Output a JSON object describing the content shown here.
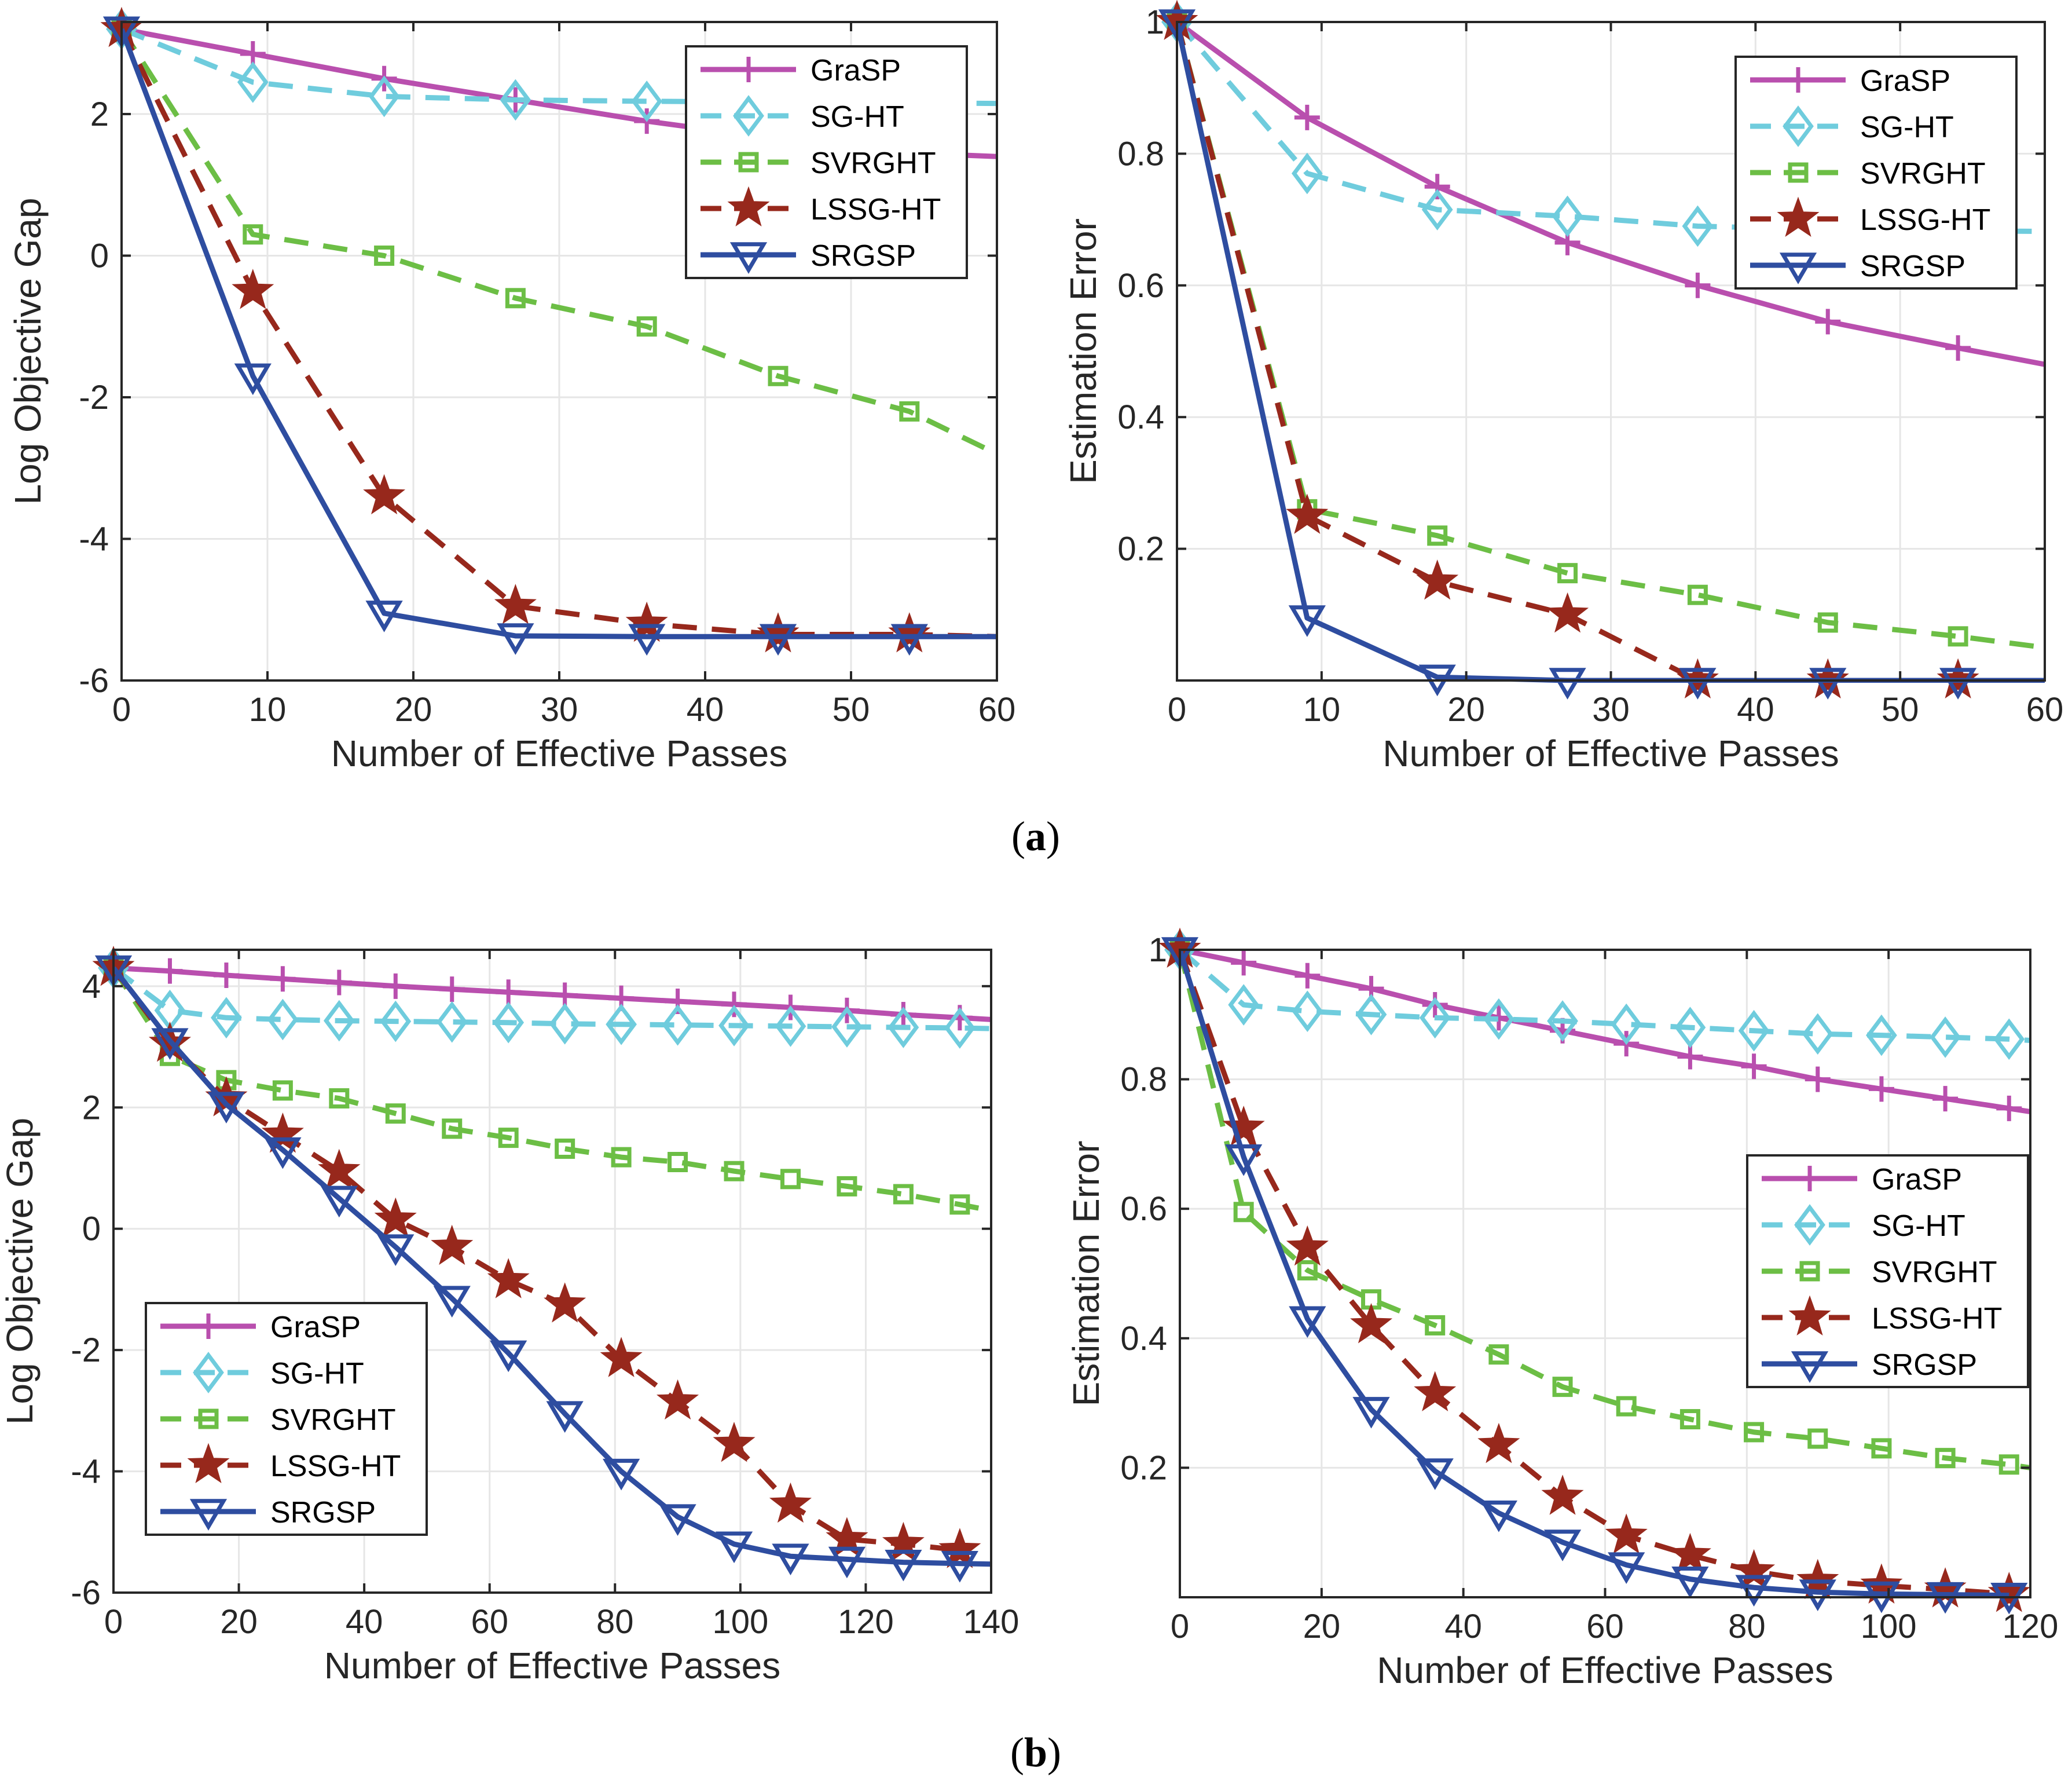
{
  "styles": {
    "GraSP": {
      "color": "#B94FAE",
      "dash": "solid",
      "marker": "plus"
    },
    "SG-HT": {
      "color": "#6FCCDD",
      "dash": "dashed",
      "marker": "diamond"
    },
    "SVRGHT": {
      "color": "#6CBE45",
      "dash": "dashed",
      "marker": "square"
    },
    "LSSG-HT": {
      "color": "#97281C",
      "dash": "dashed",
      "marker": "star"
    },
    "SRGSP": {
      "color": "#2E4DA0",
      "dash": "solid",
      "marker": "triangle-down"
    }
  },
  "subfigure_labels": {
    "a": "a",
    "b": "b"
  },
  "chart_data": [
    {
      "type": "line",
      "group": "a",
      "xlabel": "Number of Effective Passes",
      "ylabel": "Log Objective Gap",
      "xlim": [
        0,
        60
      ],
      "ylim": [
        -6,
        3.3
      ],
      "xticks": [
        0,
        10,
        20,
        30,
        40,
        50,
        60
      ],
      "yticks": [
        -6,
        -4,
        -2,
        0,
        2
      ],
      "grid": true,
      "legend_position": "top-right",
      "series": [
        {
          "name": "GraSP",
          "x": [
            0,
            9,
            18,
            27,
            36,
            45,
            54,
            60
          ],
          "y": [
            3.2,
            2.85,
            2.5,
            2.2,
            1.9,
            1.65,
            1.45,
            1.4
          ]
        },
        {
          "name": "SG-HT",
          "x": [
            0,
            9,
            18,
            27,
            36,
            45,
            54,
            60
          ],
          "y": [
            3.2,
            2.45,
            2.25,
            2.2,
            2.18,
            2.17,
            2.16,
            2.15
          ]
        },
        {
          "name": "SVRGHT",
          "x": [
            0,
            9,
            18,
            27,
            36,
            45,
            54,
            60
          ],
          "y": [
            3.2,
            0.3,
            0.0,
            -0.6,
            -1.0,
            -1.7,
            -2.2,
            -2.8
          ]
        },
        {
          "name": "LSSG-HT",
          "x": [
            0,
            9,
            18,
            27,
            36,
            45,
            54,
            60
          ],
          "y": [
            3.2,
            -0.5,
            -3.4,
            -4.95,
            -5.2,
            -5.35,
            -5.35,
            -5.38
          ]
        },
        {
          "name": "SRGSP",
          "x": [
            0,
            9,
            18,
            27,
            36,
            45,
            54,
            60
          ],
          "y": [
            3.2,
            -1.7,
            -5.05,
            -5.37,
            -5.38,
            -5.38,
            -5.38,
            -5.38
          ]
        }
      ]
    },
    {
      "type": "line",
      "group": "a",
      "xlabel": "Number of Effective Passes",
      "ylabel": "Estimation Error",
      "xlim": [
        0,
        60
      ],
      "ylim": [
        0,
        1
      ],
      "xticks": [
        0,
        10,
        20,
        30,
        40,
        50,
        60
      ],
      "yticks": [
        0.2,
        0.4,
        0.6,
        0.8,
        1
      ],
      "grid": true,
      "legend_position": "top-right",
      "series": [
        {
          "name": "GraSP",
          "x": [
            0,
            9,
            18,
            27,
            36,
            45,
            54,
            60
          ],
          "y": [
            1.0,
            0.855,
            0.75,
            0.665,
            0.6,
            0.545,
            0.505,
            0.48
          ]
        },
        {
          "name": "SG-HT",
          "x": [
            0,
            9,
            18,
            27,
            36,
            45,
            54,
            60
          ],
          "y": [
            1.0,
            0.77,
            0.715,
            0.705,
            0.69,
            0.685,
            0.683,
            0.682
          ]
        },
        {
          "name": "SVRGHT",
          "x": [
            0,
            9,
            18,
            27,
            36,
            45,
            54,
            60
          ],
          "y": [
            1.0,
            0.26,
            0.22,
            0.163,
            0.13,
            0.088,
            0.067,
            0.05
          ]
        },
        {
          "name": "LSSG-HT",
          "x": [
            0,
            9,
            18,
            27,
            36,
            45,
            54,
            60
          ],
          "y": [
            1.0,
            0.25,
            0.15,
            0.1,
            0.0,
            0.0,
            0.0,
            0.0
          ]
        },
        {
          "name": "SRGSP",
          "x": [
            0,
            9,
            18,
            27,
            36,
            45,
            54,
            60
          ],
          "y": [
            1.0,
            0.095,
            0.005,
            0.0,
            0.0,
            0.0,
            0.0,
            0.0
          ]
        }
      ]
    },
    {
      "type": "line",
      "group": "b",
      "xlabel": "Number of Effective Passes",
      "ylabel": "Log Objective Gap",
      "xlim": [
        0,
        140
      ],
      "ylim": [
        -6,
        4.6
      ],
      "xticks": [
        0,
        20,
        40,
        60,
        80,
        100,
        120,
        140
      ],
      "yticks": [
        -6,
        -4,
        -2,
        0,
        2,
        4
      ],
      "grid": true,
      "legend_position": "bottom-left",
      "series": [
        {
          "name": "GraSP",
          "x": [
            0,
            9,
            18,
            27,
            36,
            45,
            54,
            63,
            72,
            81,
            90,
            99,
            108,
            117,
            126,
            135,
            140
          ],
          "y": [
            4.3,
            4.25,
            4.18,
            4.12,
            4.06,
            4.0,
            3.95,
            3.9,
            3.85,
            3.8,
            3.75,
            3.7,
            3.65,
            3.6,
            3.53,
            3.48,
            3.45
          ]
        },
        {
          "name": "SG-HT",
          "x": [
            0,
            9,
            18,
            27,
            36,
            45,
            54,
            63,
            72,
            81,
            90,
            99,
            108,
            117,
            126,
            135,
            140
          ],
          "y": [
            4.3,
            3.6,
            3.48,
            3.45,
            3.43,
            3.42,
            3.41,
            3.4,
            3.38,
            3.37,
            3.36,
            3.35,
            3.34,
            3.33,
            3.32,
            3.31,
            3.3
          ]
        },
        {
          "name": "SVRGHT",
          "x": [
            0,
            9,
            18,
            27,
            36,
            45,
            54,
            63,
            72,
            81,
            90,
            99,
            108,
            117,
            126,
            135,
            140
          ],
          "y": [
            4.3,
            2.85,
            2.45,
            2.28,
            2.15,
            1.9,
            1.65,
            1.5,
            1.32,
            1.18,
            1.1,
            0.95,
            0.82,
            0.7,
            0.57,
            0.4,
            0.3
          ]
        },
        {
          "name": "LSSG-HT",
          "x": [
            0,
            9,
            18,
            27,
            36,
            45,
            54,
            63,
            72,
            81,
            90,
            99,
            108,
            117,
            126,
            135
          ],
          "y": [
            4.3,
            3.05,
            2.15,
            1.55,
            0.95,
            0.15,
            -0.3,
            -0.85,
            -1.25,
            -2.15,
            -2.85,
            -3.55,
            -4.55,
            -5.12,
            -5.2,
            -5.3
          ]
        },
        {
          "name": "SRGSP",
          "x": [
            0,
            9,
            18,
            27,
            36,
            45,
            54,
            63,
            72,
            81,
            90,
            99,
            108,
            117,
            126,
            135,
            140
          ],
          "y": [
            4.3,
            3.1,
            2.05,
            1.3,
            0.5,
            -0.3,
            -1.15,
            -2.05,
            -3.05,
            -4.0,
            -4.75,
            -5.2,
            -5.4,
            -5.45,
            -5.5,
            -5.52,
            -5.53
          ]
        }
      ]
    },
    {
      "type": "line",
      "group": "b",
      "xlabel": "Number of Effective Passes",
      "ylabel": "Estimation Error",
      "xlim": [
        0,
        120
      ],
      "ylim": [
        0,
        1
      ],
      "xticks": [
        0,
        20,
        40,
        60,
        80,
        100,
        120
      ],
      "yticks": [
        0.2,
        0.4,
        0.6,
        0.8,
        1
      ],
      "grid": true,
      "legend_position": "middle-right",
      "series": [
        {
          "name": "GraSP",
          "x": [
            0,
            9,
            18,
            27,
            36,
            45,
            54,
            63,
            72,
            81,
            90,
            99,
            108,
            117,
            120
          ],
          "y": [
            1.0,
            0.98,
            0.96,
            0.94,
            0.915,
            0.895,
            0.875,
            0.855,
            0.835,
            0.82,
            0.8,
            0.785,
            0.77,
            0.755,
            0.75
          ]
        },
        {
          "name": "SG-HT",
          "x": [
            0,
            9,
            18,
            27,
            36,
            45,
            54,
            63,
            72,
            81,
            90,
            99,
            108,
            117,
            120
          ],
          "y": [
            1.0,
            0.915,
            0.905,
            0.9,
            0.895,
            0.893,
            0.89,
            0.885,
            0.88,
            0.875,
            0.87,
            0.868,
            0.865,
            0.862,
            0.86
          ]
        },
        {
          "name": "SVRGHT",
          "x": [
            0,
            9,
            18,
            27,
            36,
            45,
            54,
            63,
            72,
            81,
            90,
            99,
            108,
            117,
            120
          ],
          "y": [
            1.0,
            0.595,
            0.505,
            0.46,
            0.42,
            0.375,
            0.325,
            0.295,
            0.275,
            0.255,
            0.245,
            0.23,
            0.215,
            0.205,
            0.2
          ]
        },
        {
          "name": "LSSG-HT",
          "x": [
            0,
            9,
            18,
            27,
            36,
            45,
            54,
            63,
            72,
            81,
            90,
            99,
            108,
            117
          ],
          "y": [
            1.0,
            0.725,
            0.54,
            0.42,
            0.315,
            0.235,
            0.155,
            0.095,
            0.065,
            0.04,
            0.025,
            0.018,
            0.012,
            0.005
          ]
        },
        {
          "name": "SRGSP",
          "x": [
            0,
            9,
            18,
            27,
            36,
            45,
            54,
            63,
            72,
            81,
            90,
            99,
            108,
            117
          ],
          "y": [
            1.0,
            0.68,
            0.43,
            0.29,
            0.195,
            0.13,
            0.085,
            0.05,
            0.028,
            0.015,
            0.008,
            0.005,
            0.004,
            0.003
          ]
        }
      ]
    }
  ]
}
